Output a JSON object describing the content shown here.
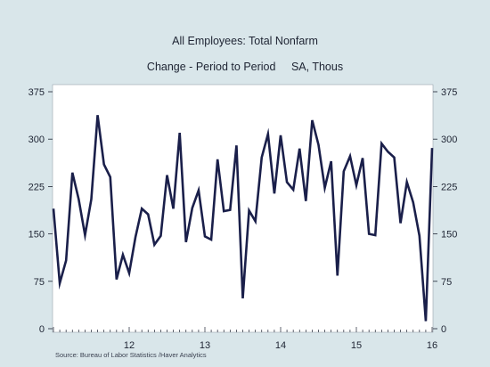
{
  "chart_data": {
    "type": "line",
    "title": "All Employees: Total Nonfarm",
    "subtitle_left": "Change - Period to Period",
    "subtitle_right": "SA, Thous",
    "ylim": [
      0,
      375
    ],
    "yticks": [
      "375",
      "300",
      "225",
      "150",
      "75",
      "0"
    ],
    "ytick_values": [
      375,
      300,
      225,
      150,
      75,
      0
    ],
    "xlim": [
      2011.0,
      2016.0
    ],
    "xticks": [
      {
        "label": "12",
        "value": 2012.0
      },
      {
        "label": "13",
        "value": 2013.0
      },
      {
        "label": "14",
        "value": 2014.0
      },
      {
        "label": "15",
        "value": 2015.0
      },
      {
        "label": "16",
        "value": 2016.0
      }
    ],
    "grid": false,
    "source": "Source:  Bureau of Labor Statistics /Haver Analytics",
    "series": [
      {
        "color": "#1a1f4a",
        "x": [
          2011.0,
          2011.083,
          2011.167,
          2011.25,
          2011.333,
          2011.417,
          2011.5,
          2011.583,
          2011.667,
          2011.75,
          2011.833,
          2011.917,
          2012.0,
          2012.083,
          2012.167,
          2012.25,
          2012.333,
          2012.417,
          2012.5,
          2012.583,
          2012.667,
          2012.75,
          2012.833,
          2012.917,
          2013.0,
          2013.083,
          2013.167,
          2013.25,
          2013.333,
          2013.417,
          2013.5,
          2013.583,
          2013.667,
          2013.75,
          2013.833,
          2013.917,
          2014.0,
          2014.083,
          2014.167,
          2014.25,
          2014.333,
          2014.417,
          2014.5,
          2014.583,
          2014.667,
          2014.75,
          2014.833,
          2014.917,
          2015.0,
          2015.083,
          2015.167,
          2015.25,
          2015.333,
          2015.417,
          2015.5,
          2015.583,
          2015.667,
          2015.75,
          2015.833,
          2015.917,
          2016.0
        ],
        "values": [
          190,
          72,
          108,
          247,
          205,
          148,
          205,
          338,
          260,
          240,
          78,
          117,
          88,
          145,
          190,
          181,
          133,
          147,
          243,
          190,
          310,
          137,
          191,
          219,
          146,
          141,
          268,
          186,
          188,
          290,
          48,
          187,
          170,
          271,
          308,
          214,
          306,
          232,
          220,
          285,
          202,
          330,
          291,
          223,
          265,
          84,
          249,
          273,
          227,
          270,
          150,
          148,
          293,
          280,
          271,
          167,
          232,
          200,
          147,
          12,
          286
        ]
      }
    ]
  }
}
